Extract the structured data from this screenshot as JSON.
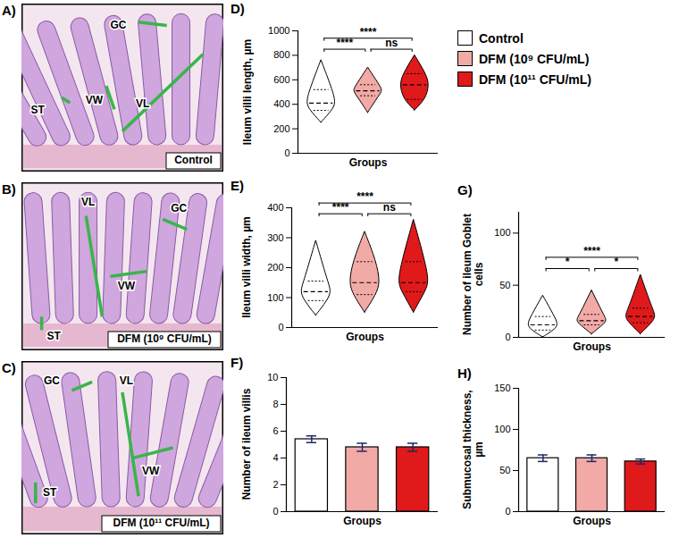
{
  "images": [
    {
      "panel": "A)",
      "caption": "Control",
      "labels": [
        "GC",
        "VW",
        "VL",
        "ST"
      ]
    },
    {
      "panel": "B)",
      "caption": "DFM (10⁹ CFU/mL)",
      "labels": [
        "GC",
        "VW",
        "VL",
        "ST"
      ]
    },
    {
      "panel": "C)",
      "caption": "DFM (10¹¹ CFU/mL)",
      "labels": [
        "GC",
        "VW",
        "VL",
        "ST"
      ]
    }
  ],
  "groups": {
    "names": [
      "Control",
      "DFM (10⁹ CFU/mL)",
      "DFM (10¹¹ CFU/mL)"
    ],
    "colors": [
      "#ffffff",
      "#f2aaa6",
      "#e0191b"
    ]
  },
  "chart_data": [
    {
      "panel": "D)",
      "type": "violin",
      "ylabel": "Ileum villi length, µm",
      "xlabel": "Groups",
      "categories": [
        null,
        null,
        null
      ],
      "colors": [
        "#ffffff",
        "#f2aaa6",
        "#e0191b"
      ],
      "tick_labels": "y",
      "ylim": [
        0,
        1000
      ],
      "yticks": [
        0,
        200,
        400,
        600,
        800,
        1000
      ],
      "min": [
        250,
        330,
        350
      ],
      "q1": [
        350,
        470,
        440
      ],
      "median": [
        410,
        510,
        560
      ],
      "q3": [
        520,
        560,
        650
      ],
      "max": [
        760,
        700,
        800
      ],
      "comparisons": [
        {
          "pair": [
            0,
            1
          ],
          "label": "****"
        },
        {
          "pair": [
            0,
            2
          ],
          "label": "****"
        },
        {
          "pair": [
            1,
            2
          ],
          "label": "ns"
        }
      ]
    },
    {
      "panel": "E)",
      "type": "violin",
      "ylabel": "Ileum villi width, µm",
      "xlabel": "Groups",
      "categories": [
        null,
        null,
        null
      ],
      "colors": [
        "#ffffff",
        "#f2aaa6",
        "#e0191b"
      ],
      "tick_labels": "y",
      "ylim": [
        0,
        400
      ],
      "yticks": [
        0,
        100,
        200,
        300,
        400
      ],
      "min": [
        40,
        50,
        50
      ],
      "q1": [
        90,
        110,
        120
      ],
      "median": [
        120,
        150,
        150
      ],
      "q3": [
        155,
        220,
        220
      ],
      "max": [
        290,
        320,
        360
      ],
      "comparisons": [
        {
          "pair": [
            0,
            1
          ],
          "label": "****"
        },
        {
          "pair": [
            0,
            2
          ],
          "label": "****"
        },
        {
          "pair": [
            1,
            2
          ],
          "label": "ns"
        }
      ]
    },
    {
      "panel": "G)",
      "type": "violin",
      "ylabel": "Number of ileum Goblet cells",
      "xlabel": "Groups",
      "categories": [
        null,
        null,
        null
      ],
      "colors": [
        "#ffffff",
        "#f2aaa6",
        "#e0191b"
      ],
      "tick_labels": "y",
      "ylim": [
        0,
        120
      ],
      "yticks": [
        0,
        50,
        100
      ],
      "min": [
        0,
        3,
        3
      ],
      "q1": [
        7,
        12,
        14
      ],
      "median": [
        12,
        16,
        20
      ],
      "q3": [
        20,
        22,
        28
      ],
      "max": [
        40,
        45,
        60
      ],
      "comparisons": [
        {
          "pair": [
            0,
            1
          ],
          "label": "*"
        },
        {
          "pair": [
            0,
            2
          ],
          "label": "****"
        },
        {
          "pair": [
            1,
            2
          ],
          "label": "*"
        }
      ]
    },
    {
      "panel": "F)",
      "type": "bar",
      "ylabel": "Number of ileum villis",
      "xlabel": "Groups",
      "categories": [
        null,
        null,
        null
      ],
      "colors": [
        "#ffffff",
        "#f2aaa6",
        "#e0191b"
      ],
      "tick_labels": "y",
      "ylim": [
        0,
        10
      ],
      "yticks": [
        0,
        2,
        4,
        6,
        8,
        10
      ],
      "values": [
        5.4,
        4.8,
        4.8
      ],
      "errors": [
        0.25,
        0.3,
        0.3
      ]
    },
    {
      "panel": "H)",
      "type": "bar",
      "ylabel": "Submucosal thickness, µm",
      "xlabel": "Groups",
      "categories": [
        null,
        null,
        null
      ],
      "colors": [
        "#ffffff",
        "#f2aaa6",
        "#e0191b"
      ],
      "tick_labels": "y",
      "ylim": [
        0,
        150
      ],
      "yticks": [
        0,
        50,
        100,
        150
      ],
      "values": [
        65,
        65,
        61
      ],
      "errors": [
        4,
        4,
        3
      ]
    }
  ]
}
